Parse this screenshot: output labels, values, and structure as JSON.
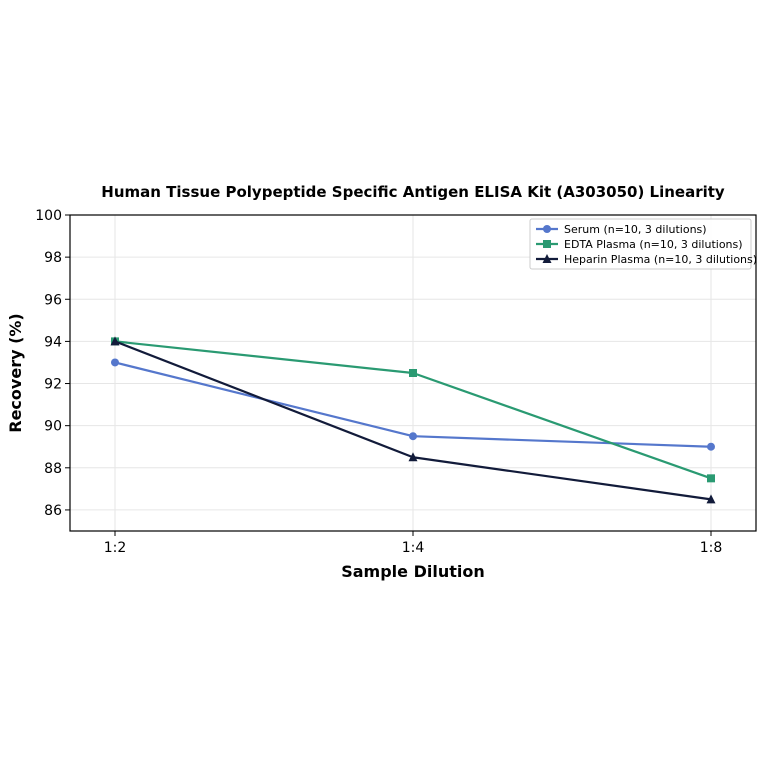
{
  "chart_data": {
    "type": "line",
    "title": "Human Tissue Polypeptide Specific Antigen ELISA Kit (A303050) Linearity",
    "xlabel": "Sample Dilution",
    "ylabel": "Recovery (%)",
    "categories": [
      "1:2",
      "1:4",
      "1:8"
    ],
    "ylim": [
      85,
      100
    ],
    "yticks": [
      "86",
      "88",
      "90",
      "92",
      "94",
      "96",
      "98",
      "100"
    ],
    "grid": true,
    "legend_position": "top-right",
    "series": [
      {
        "name": "Serum (n=10, 3 dilutions)",
        "values": [
          93.0,
          89.5,
          89.0
        ],
        "color": "#5577cc",
        "marker": "circle"
      },
      {
        "name": "EDTA Plasma (n=10, 3 dilutions)",
        "values": [
          94.0,
          92.5,
          87.5
        ],
        "color": "#2a9a72",
        "marker": "square"
      },
      {
        "name": "Heparin Plasma (n=10, 3 dilutions)",
        "values": [
          94.0,
          88.5,
          86.5
        ],
        "color": "#121b3a",
        "marker": "triangle"
      }
    ]
  }
}
